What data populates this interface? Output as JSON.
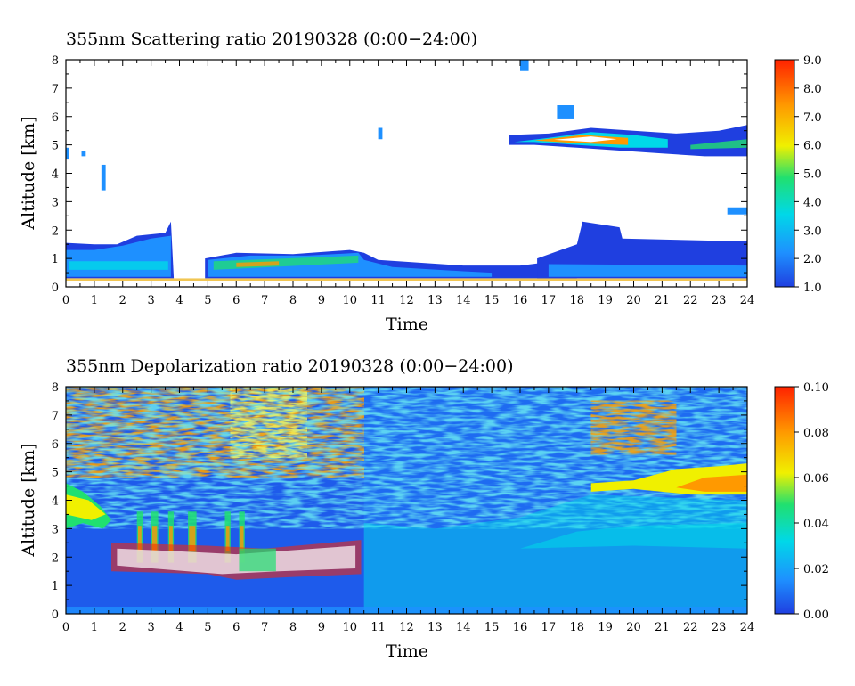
{
  "chart_data": [
    {
      "type": "heatmap",
      "title": "355nm Scattering ratio  20190328 (0:00−24:00)",
      "xlabel": "Time",
      "ylabel": "Altitude [km]",
      "xlim": [
        0,
        24
      ],
      "ylim": [
        0,
        8
      ],
      "xticks": [
        "0",
        "1",
        "2",
        "3",
        "4",
        "5",
        "6",
        "7",
        "8",
        "9",
        "10",
        "11",
        "12",
        "13",
        "14",
        "15",
        "16",
        "17",
        "18",
        "19",
        "20",
        "21",
        "22",
        "23",
        "24"
      ],
      "yticks": [
        "0",
        "1",
        "2",
        "3",
        "4",
        "5",
        "6",
        "7",
        "8"
      ],
      "colorbar": {
        "range": [
          1.0,
          9.0
        ],
        "ticks": [
          "1.0",
          "2.0",
          "3.0",
          "4.0",
          "5.0",
          "6.0",
          "7.0",
          "8.0",
          "9.0"
        ],
        "colors": [
          "#1f3fe0",
          "#1e90ff",
          "#00d8e8",
          "#20e070",
          "#f0f000",
          "#ff9900",
          "#ff2200"
        ]
      },
      "features": [
        {
          "label": "boundary layer aerosol",
          "x": [
            0,
            24
          ],
          "alt_km": [
            0.3,
            1.6
          ],
          "value_range": [
            1.5,
            7.0
          ]
        },
        {
          "label": "mid-level cloud",
          "x": [
            15.6,
            24
          ],
          "alt_km": [
            4.6,
            5.7
          ],
          "value_range": [
            2.0,
            9.0
          ]
        },
        {
          "label": "cloud patch",
          "x": [
            18.0,
            24
          ],
          "alt_km": [
            1.0,
            2.3
          ],
          "value_range": [
            1.0,
            2.0
          ]
        }
      ]
    },
    {
      "type": "heatmap",
      "title": "355nm Depolarization ratio  20190328 (0:00−24:00)",
      "xlabel": "Time",
      "ylabel": "Altitude [km]",
      "xlim": [
        0,
        24
      ],
      "ylim": [
        0,
        8
      ],
      "xticks": [
        "0",
        "1",
        "2",
        "3",
        "4",
        "5",
        "6",
        "7",
        "8",
        "9",
        "10",
        "11",
        "12",
        "13",
        "14",
        "15",
        "16",
        "17",
        "18",
        "19",
        "20",
        "21",
        "22",
        "23",
        "24"
      ],
      "yticks": [
        "0",
        "1",
        "2",
        "3",
        "4",
        "5",
        "6",
        "7",
        "8"
      ],
      "colorbar": {
        "range": [
          0.0,
          0.1
        ],
        "ticks": [
          "0.00",
          "0.02",
          "0.04",
          "0.06",
          "0.08",
          "0.10"
        ],
        "colors": [
          "#1f3fe0",
          "#1e90ff",
          "#00d8e8",
          "#20e070",
          "#f0f000",
          "#ff9900",
          "#ff2200"
        ]
      },
      "features": [
        {
          "label": "noisy upper region",
          "x": [
            0,
            10.5
          ],
          "alt_km": [
            5.0,
            8.0
          ],
          "value_range": [
            0.0,
            0.1
          ]
        },
        {
          "label": "depolarizing layer",
          "x": [
            18.5,
            24
          ],
          "alt_km": [
            4.2,
            5.3
          ],
          "value_range": [
            0.05,
            0.09
          ]
        },
        {
          "label": "lower layers",
          "x": [
            0,
            10.5
          ],
          "alt_km": [
            1.2,
            4.5
          ],
          "value_range": [
            0.02,
            0.08
          ]
        }
      ]
    }
  ]
}
